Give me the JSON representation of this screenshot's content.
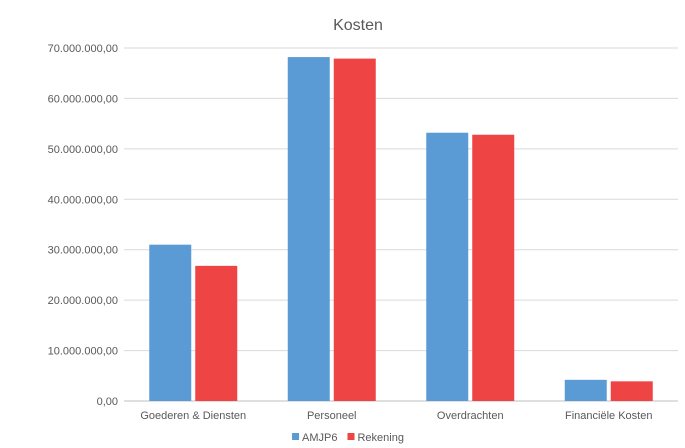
{
  "chart_data": {
    "type": "bar",
    "title": "Kosten",
    "categories": [
      "Goederen & Diensten",
      "Personeel",
      "Overdrachten",
      "Financiële Kosten"
    ],
    "series": [
      {
        "name": "AMJP6",
        "color": "#5b9bd5",
        "values": [
          31000000,
          68200000,
          53200000,
          4200000
        ]
      },
      {
        "name": "Rekening",
        "color": "#ee4444",
        "values": [
          26800000,
          67900000,
          52800000,
          3900000
        ]
      }
    ],
    "ylim": [
      0,
      70000000
    ],
    "yticks": [
      0,
      10000000,
      20000000,
      30000000,
      40000000,
      50000000,
      60000000,
      70000000
    ],
    "ytick_labels": [
      "0,00",
      "10.000.000,00",
      "20.000.000,00",
      "30.000.000,00",
      "40.000.000,00",
      "50.000.000,00",
      "60.000.000,00",
      "70.000.000,00"
    ],
    "grid": true,
    "legend_position": "bottom"
  }
}
